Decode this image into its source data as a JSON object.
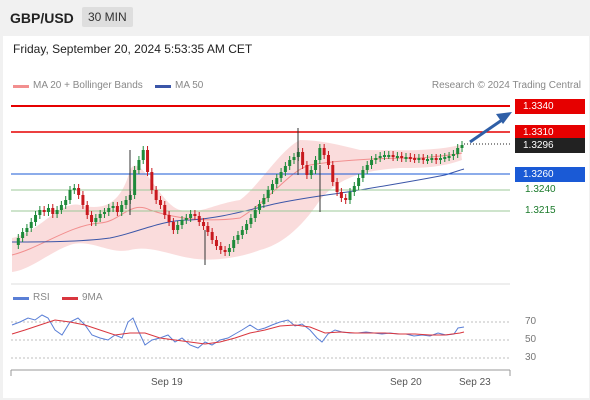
{
  "header": {
    "pair": "GBP/USD",
    "timeframe": "30 MIN"
  },
  "datetime": "Friday, September 20, 2024 5:53:35 AM CET",
  "legend": {
    "bollinger": "MA 20 + Bollinger Bands",
    "ma50": "MA 50"
  },
  "credit": "Research © 2024 Trading Central",
  "levels": [
    {
      "label": "1.3340",
      "kind": "resistance",
      "color": "#e60000"
    },
    {
      "label": "1.3310",
      "kind": "resistance",
      "color": "#e60000"
    },
    {
      "label": "1.3296",
      "kind": "last-price",
      "color": "#222222"
    },
    {
      "label": "1.3260",
      "kind": "pivot",
      "color": "#1a5ad6"
    },
    {
      "label": "1.3240",
      "kind": "support",
      "color": "#1a7a2a"
    },
    {
      "label": "1.3215",
      "kind": "support",
      "color": "#1a7a2a"
    }
  ],
  "x_labels": [
    "Sep 19",
    "Sep 20",
    "Sep 23"
  ],
  "rsi_legend": {
    "rsi": "RSI",
    "ma": "9MA"
  },
  "rsi_levels": [
    "70",
    "50",
    "30"
  ],
  "colors": {
    "up": "#1e8a3a",
    "down": "#c8191e",
    "bands": "#f9d3d3",
    "ma50": "#3b56a8",
    "rsi": "#5a7fd6",
    "rsi_ma": "#d9363e"
  }
}
